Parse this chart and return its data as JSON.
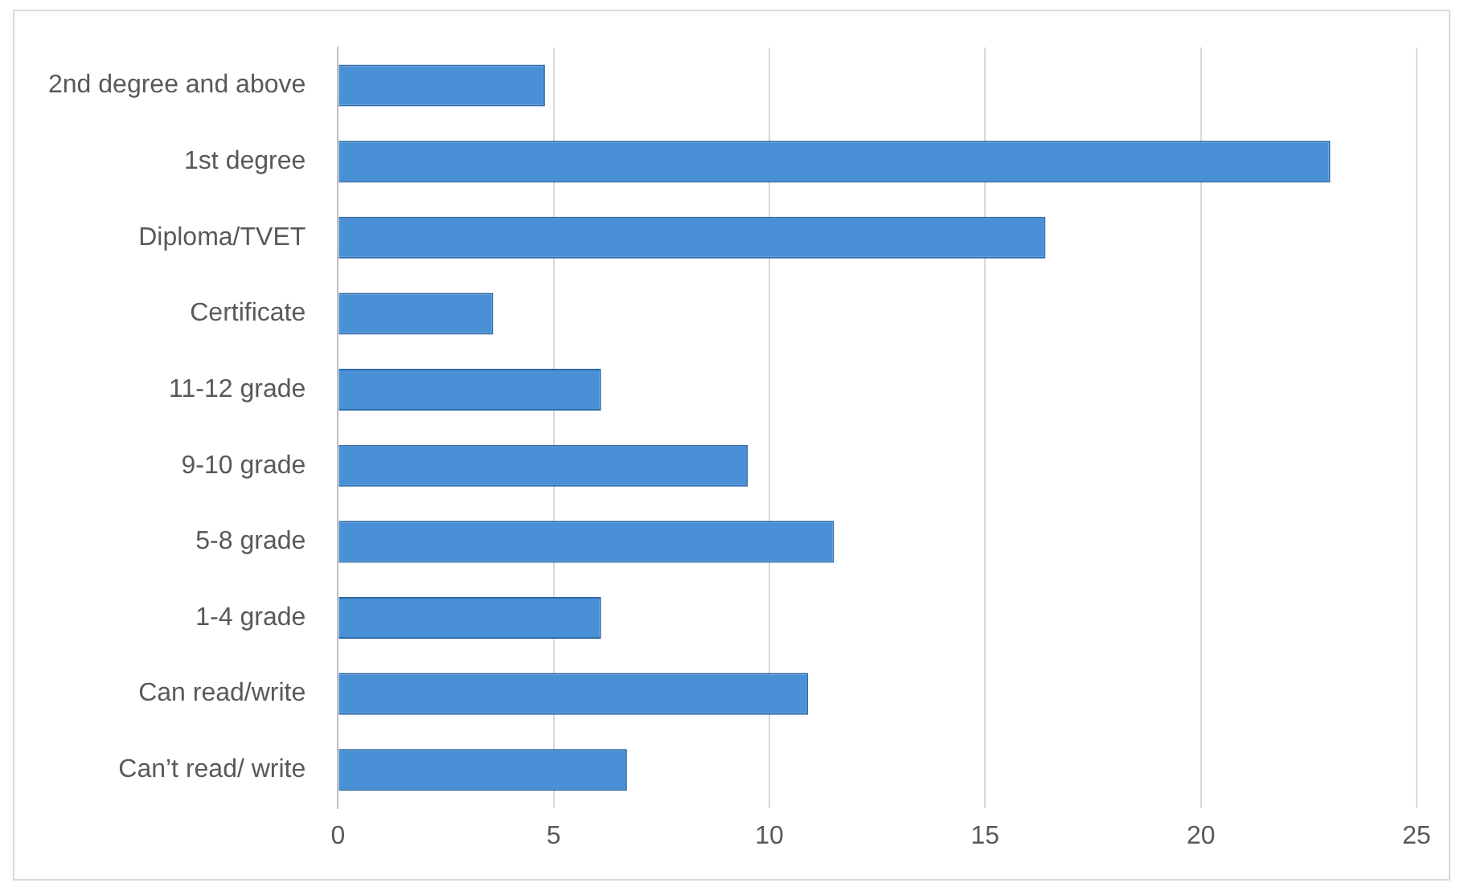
{
  "chart_data": {
    "type": "bar",
    "orientation": "horizontal",
    "categories": [
      "2nd degree and above",
      "1st degree",
      "Diploma/TVET",
      "Certificate",
      "11-12 grade",
      "9-10 grade",
      "5-8 grade",
      "1-4 grade",
      "Can read/write",
      "Can’t read/ write"
    ],
    "values": [
      4.8,
      23.0,
      16.4,
      3.6,
      6.1,
      9.5,
      11.5,
      6.1,
      10.9,
      6.7
    ],
    "color": "#4a90d6",
    "xlim": [
      0,
      25
    ],
    "xticks": [
      0,
      5,
      10,
      15,
      20,
      25
    ],
    "grid": "x",
    "legend": false
  }
}
